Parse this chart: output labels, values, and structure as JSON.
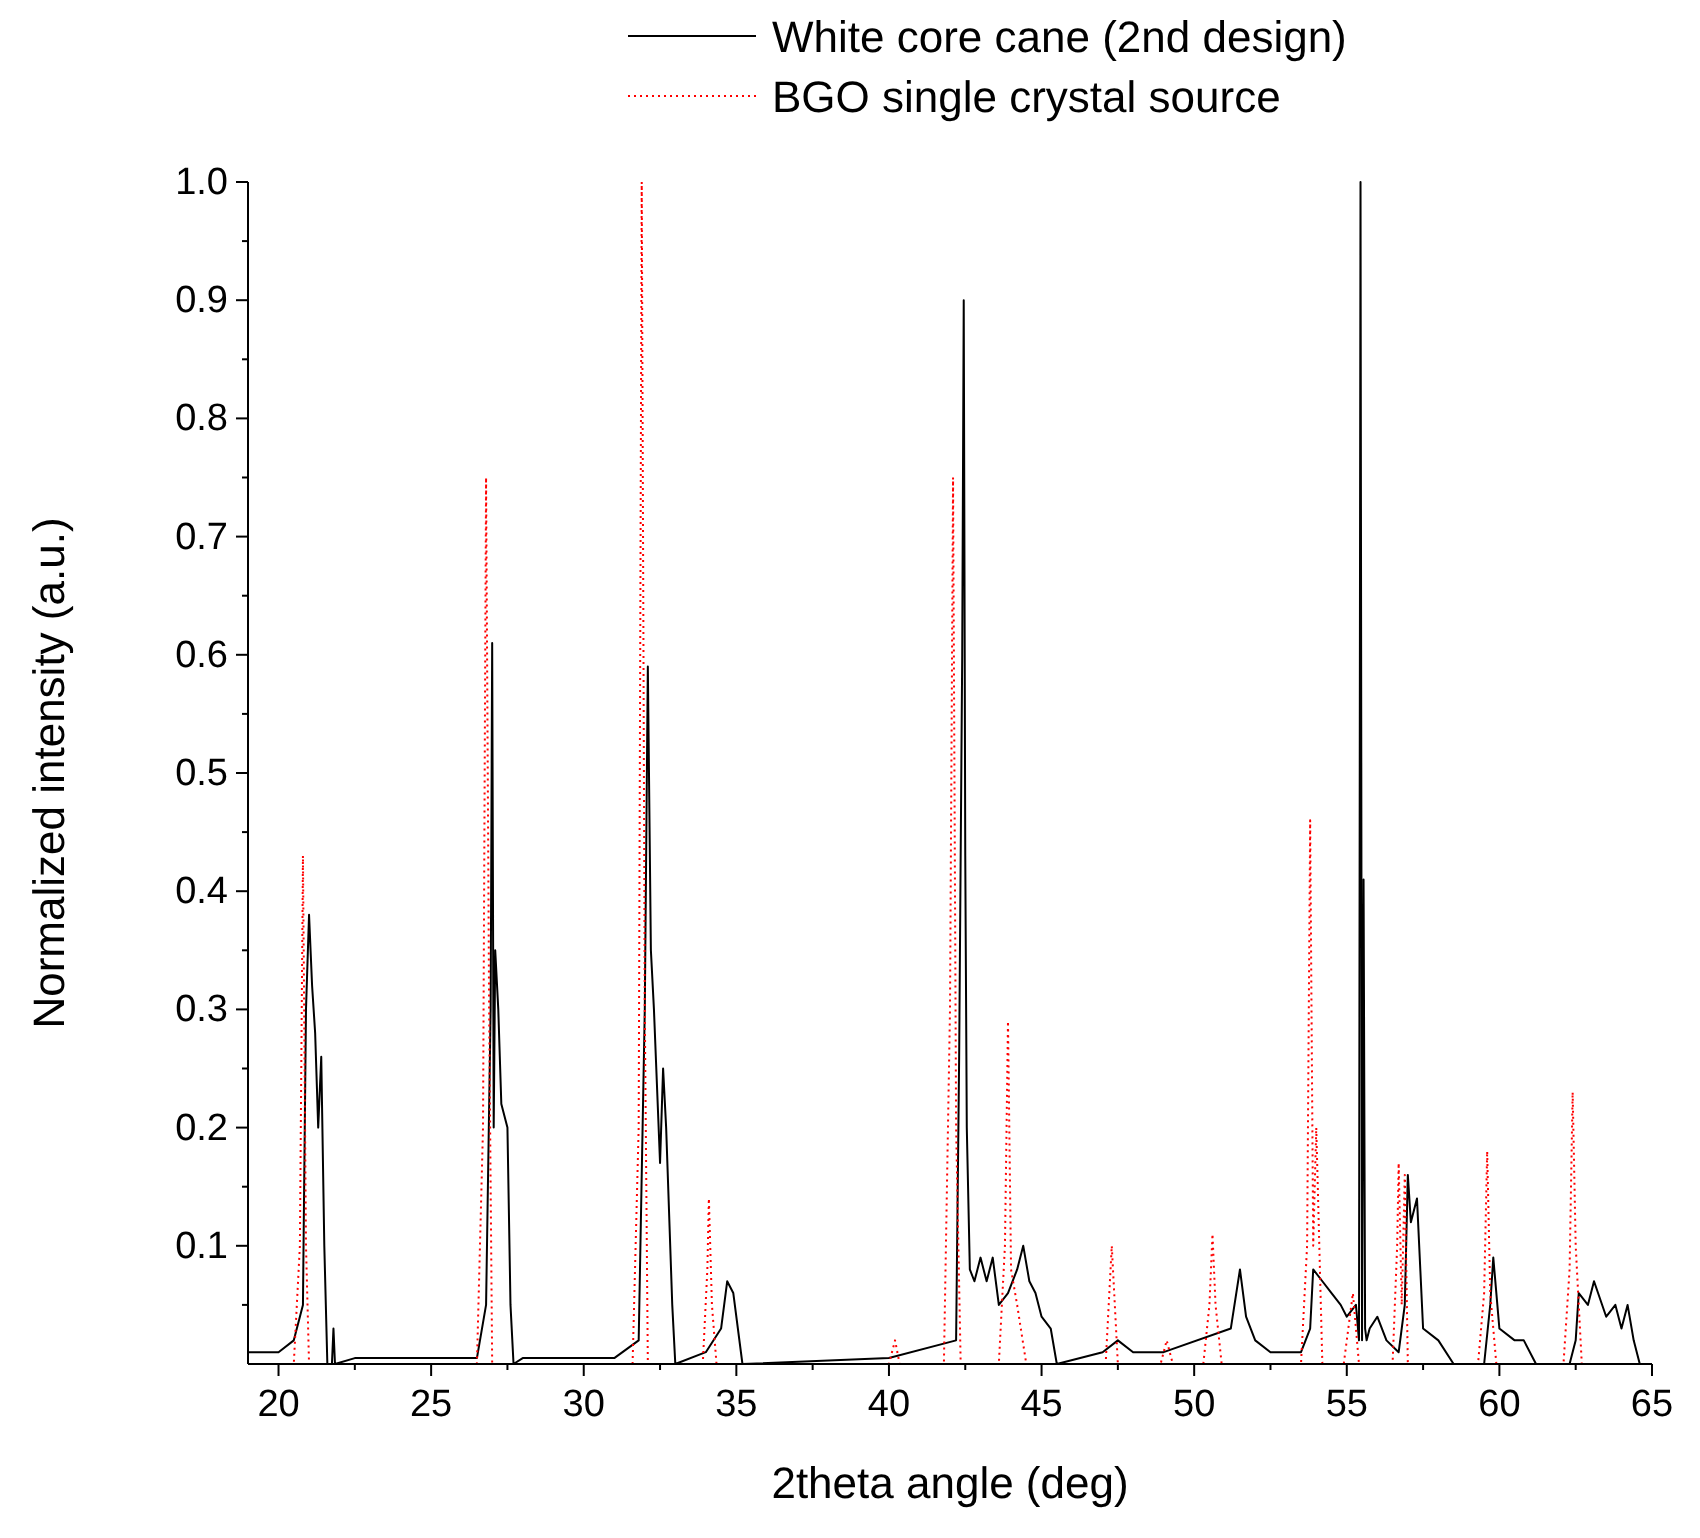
{
  "chart_data": {
    "type": "line",
    "xlabel": "2theta angle (deg)",
    "ylabel": "Normalized intensity (a.u.)",
    "xlim": [
      19,
      65
    ],
    "ylim": [
      0,
      1
    ],
    "xticks": [
      20,
      25,
      30,
      35,
      40,
      45,
      50,
      55,
      60,
      65
    ],
    "yticks": [
      0.1,
      0.2,
      0.3,
      0.4,
      0.5,
      0.6,
      0.7,
      0.8,
      0.9,
      {
        "value": 1,
        "label": "1.0"
      }
    ],
    "grid": false,
    "legend": "top",
    "marker": "none",
    "series": [
      {
        "name": "White core cane (2nd design)",
        "color": "#000000",
        "line_style": "solid",
        "x": [
          19,
          20,
          20.5,
          20.8,
          20.9,
          21.0,
          21.1,
          21.2,
          21.3,
          21.4,
          21.5,
          21.6,
          21.75,
          21.8,
          21.85,
          22.5,
          25,
          26.5,
          26.8,
          26.95,
          27.0,
          27.05,
          27.1,
          27.2,
          27.3,
          27.5,
          27.6,
          27.7,
          28,
          31,
          31.8,
          32.0,
          32.1,
          32.2,
          32.3,
          32.5,
          32.6,
          32.7,
          32.9,
          33.0,
          34,
          34.5,
          34.7,
          34.9,
          35.2,
          40,
          42.2,
          42.3,
          42.4,
          42.45,
          42.5,
          42.55,
          42.65,
          42.8,
          43.0,
          43.2,
          43.4,
          43.6,
          43.9,
          44.2,
          44.4,
          44.6,
          44.8,
          45.0,
          45.3,
          45.5,
          47,
          47.5,
          48,
          49,
          51.2,
          51.5,
          51.7,
          52.0,
          52.5,
          53.5,
          53.8,
          53.9,
          54.2,
          54.5,
          54.8,
          55.0,
          55.3,
          55.4,
          55.45,
          55.5,
          55.55,
          55.6,
          55.65,
          55.75,
          56.0,
          56.3,
          56.7,
          56.9,
          57.0,
          57.1,
          57.3,
          57.5,
          58,
          58.5,
          59.5,
          59.7,
          59.8,
          60.0,
          60.5,
          60.8,
          61.2,
          62.3,
          62.5,
          62.6,
          62.9,
          63.1,
          63.5,
          63.8,
          64.0,
          64.2,
          64.4,
          64.6
        ],
        "values": [
          0.01,
          0.01,
          0.02,
          0.05,
          0.3,
          0.38,
          0.32,
          0.28,
          0.2,
          0.26,
          0.1,
          0.0,
          0.0,
          0.03,
          0.0,
          0.005,
          0.005,
          0.005,
          0.05,
          0.3,
          0.61,
          0.2,
          0.35,
          0.3,
          0.22,
          0.2,
          0.05,
          0.0,
          0.005,
          0.005,
          0.02,
          0.3,
          0.59,
          0.35,
          0.3,
          0.17,
          0.25,
          0.2,
          0.05,
          0.0,
          0.01,
          0.03,
          0.07,
          0.06,
          0.0,
          0.005,
          0.02,
          0.26,
          0.6,
          0.9,
          0.43,
          0.2,
          0.08,
          0.07,
          0.09,
          0.07,
          0.09,
          0.05,
          0.06,
          0.08,
          0.1,
          0.07,
          0.06,
          0.04,
          0.03,
          0.0,
          0.01,
          0.02,
          0.01,
          0.01,
          0.03,
          0.08,
          0.04,
          0.02,
          0.01,
          0.01,
          0.03,
          0.08,
          0.07,
          0.06,
          0.05,
          0.04,
          0.05,
          0.02,
          1.0,
          0.02,
          0.41,
          0.03,
          0.02,
          0.03,
          0.04,
          0.02,
          0.01,
          0.05,
          0.16,
          0.12,
          0.14,
          0.03,
          0.02,
          0.0,
          0.0,
          0.05,
          0.09,
          0.03,
          0.02,
          0.02,
          0.0,
          0.0,
          0.02,
          0.06,
          0.05,
          0.07,
          0.04,
          0.05,
          0.03,
          0.05,
          0.02,
          0.0
        ]
      },
      {
        "name": "BGO single crystal source",
        "color": "#ff0000",
        "line_style": "dotted",
        "x": [
          19,
          20.5,
          20.7,
          20.8,
          20.9,
          21.0,
          26.5,
          26.7,
          26.8,
          26.9,
          27.0,
          31.6,
          31.8,
          31.9,
          32.0,
          32.1,
          33.9,
          34.05,
          34.1,
          34.2,
          34.35,
          40.0,
          40.2,
          40.35,
          41.8,
          42.0,
          42.1,
          42.2,
          42.35,
          43.6,
          43.8,
          43.9,
          44.0,
          44.2,
          44.5,
          47.1,
          47.3,
          47.5,
          48.9,
          49.1,
          49.3,
          50.3,
          50.5,
          50.6,
          50.7,
          50.9,
          53.5,
          53.7,
          53.8,
          53.9,
          54.0,
          54.2,
          54.9,
          55.2,
          55.4,
          56.5,
          56.65,
          56.7,
          56.8,
          56.9,
          57.0,
          59.3,
          59.5,
          59.6,
          59.7,
          59.9,
          62.1,
          62.3,
          62.4,
          62.5,
          62.7,
          65
        ],
        "values": [
          0.0,
          0.0,
          0.1,
          0.43,
          0.1,
          0.0,
          0.0,
          0.2,
          0.75,
          0.3,
          0.0,
          0.0,
          0.2,
          1.0,
          0.3,
          0.0,
          0.0,
          0.08,
          0.14,
          0.05,
          0.0,
          0.0,
          0.02,
          0.0,
          0.0,
          0.3,
          0.75,
          0.2,
          0.0,
          0.0,
          0.1,
          0.29,
          0.08,
          0.05,
          0.0,
          0.0,
          0.1,
          0.0,
          0.0,
          0.02,
          0.0,
          0.0,
          0.05,
          0.11,
          0.05,
          0.0,
          0.0,
          0.1,
          0.46,
          0.1,
          0.2,
          0.0,
          0.0,
          0.06,
          0.0,
          0.0,
          0.1,
          0.17,
          0.05,
          0.16,
          0.0,
          0.0,
          0.06,
          0.18,
          0.06,
          0.0,
          0.0,
          0.08,
          0.23,
          0.1,
          0.0,
          0.0
        ]
      }
    ]
  }
}
